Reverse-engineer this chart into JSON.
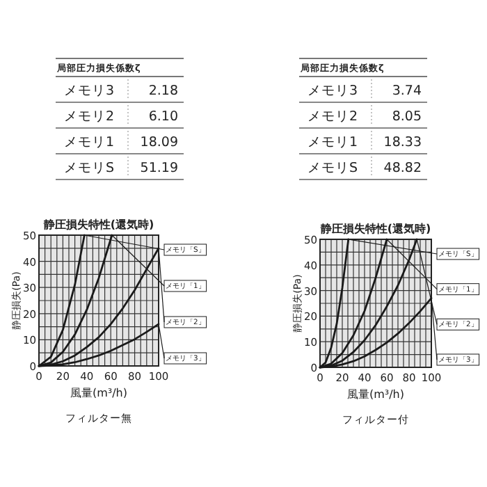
{
  "chart_data": [
    {
      "type": "other",
      "title": "局部圧力損失係数ζ",
      "annotations": [
        "メモリ3",
        "2.18",
        "メモリ2",
        "6.10",
        "メモリ1",
        "18.09",
        "メモリS",
        "51.19"
      ]
    },
    {
      "type": "other",
      "title": "局部圧力損失係数ζ",
      "annotations": [
        "メモリ3",
        "3.74",
        "メモリ2",
        "8.05",
        "メモリ1",
        "18.33",
        "メモリS",
        "48.82"
      ]
    },
    {
      "type": "line",
      "title": "静圧損失特性(還気時)",
      "xlabel": "風量(m³/h)",
      "ylabel": "静圧損失(Pa)",
      "xlim": [
        0,
        100
      ],
      "ylim": [
        0,
        50
      ],
      "xticks": [
        0,
        20,
        40,
        60,
        80,
        100
      ],
      "yticks": [
        0,
        10,
        20,
        30,
        40,
        50
      ],
      "grid": true,
      "annotations": [
        "フィルター無"
      ],
      "series": [
        {
          "name": "メモリ「S」",
          "color": "#1a1a1a",
          "x": [
            0,
            10,
            20,
            30,
            38
          ],
          "values": [
            0,
            3.5,
            13.8,
            31,
            50
          ]
        },
        {
          "name": "メモリ「1」",
          "color": "#1a1a1a",
          "x": [
            0,
            10,
            20,
            30,
            40,
            50,
            61
          ],
          "values": [
            0,
            1.3,
            5.4,
            12,
            21.5,
            33.6,
            50
          ]
        },
        {
          "name": "メモリ「2」",
          "color": "#1a1a1a",
          "x": [
            0,
            10,
            20,
            30,
            40,
            50,
            60,
            70,
            80,
            90,
            100
          ],
          "values": [
            0,
            0.5,
            1.8,
            4,
            7.2,
            11,
            16,
            22,
            29,
            37,
            45
          ]
        },
        {
          "name": "メモリ「3」",
          "color": "#1a1a1a",
          "x": [
            0,
            10,
            20,
            30,
            40,
            50,
            60,
            70,
            80,
            90,
            100
          ],
          "values": [
            0,
            0.2,
            0.6,
            1.4,
            2.6,
            4,
            5.8,
            8,
            10.2,
            13,
            16
          ]
        }
      ]
    },
    {
      "type": "line",
      "title": "静圧損失特性(還気時)",
      "xlabel": "風量(m³/h)",
      "ylabel": "静圧損失(Pa)",
      "xlim": [
        0,
        100
      ],
      "ylim": [
        0,
        50
      ],
      "xticks": [
        0,
        20,
        40,
        60,
        80,
        100
      ],
      "yticks": [
        0,
        10,
        20,
        30,
        40,
        50
      ],
      "grid": true,
      "annotations": [
        "フィルター付"
      ],
      "series": [
        {
          "name": "メモリ「S」",
          "color": "#1a1a1a",
          "x": [
            0,
            5,
            10,
            15,
            20,
            25.5
          ],
          "values": [
            0,
            1.9,
            7.7,
            17,
            31,
            50
          ]
        },
        {
          "name": "メモリ「1」",
          "color": "#1a1a1a",
          "x": [
            0,
            10,
            20,
            30,
            40,
            50,
            60
          ],
          "values": [
            0,
            1.4,
            5.6,
            12.5,
            22,
            35,
            50
          ]
        },
        {
          "name": "メモリ「2」",
          "color": "#1a1a1a",
          "x": [
            0,
            10,
            20,
            30,
            40,
            50,
            60,
            70,
            80,
            87
          ],
          "values": [
            0,
            0.7,
            2.6,
            6,
            10.6,
            16.5,
            23.8,
            32,
            42,
            50
          ]
        },
        {
          "name": "メモリ「3」",
          "color": "#1a1a1a",
          "x": [
            0,
            10,
            20,
            30,
            40,
            50,
            60,
            70,
            80,
            90,
            100
          ],
          "values": [
            0,
            0.3,
            1.1,
            2.4,
            4.3,
            6.8,
            9.7,
            13.2,
            17.3,
            21.9,
            27
          ]
        }
      ]
    }
  ]
}
